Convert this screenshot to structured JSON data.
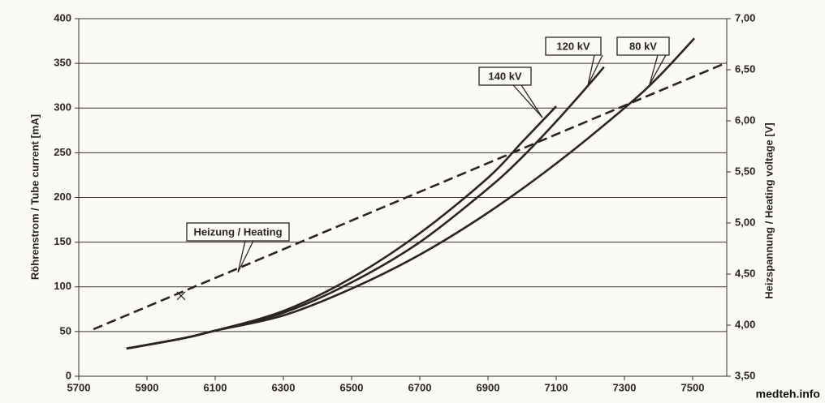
{
  "chart_data": {
    "type": "line",
    "y_label": "Röhrenstrom / Tube current  [mA]",
    "y2_label": "Heizspannung / Heating voltage [V]",
    "xlim": [
      5700,
      7600
    ],
    "xticks": [
      5700,
      5900,
      6100,
      6300,
      6500,
      6700,
      6900,
      7100,
      7300,
      7500
    ],
    "ylim": [
      0,
      400
    ],
    "yticks": [
      0,
      50,
      100,
      150,
      200,
      250,
      300,
      350,
      400
    ],
    "y2lim": [
      3.5,
      7.0
    ],
    "y2ticks": [
      {
        "value": 3.5,
        "label": "3,50"
      },
      {
        "value": 4.0,
        "label": "4,00"
      },
      {
        "value": 4.5,
        "label": "4,50"
      },
      {
        "value": 5.0,
        "label": "5,00"
      },
      {
        "value": 5.5,
        "label": "5,50"
      },
      {
        "value": 6.0,
        "label": "6,00"
      },
      {
        "value": 6.5,
        "label": "6,50"
      },
      {
        "value": 7.0,
        "label": "7,00"
      }
    ],
    "grid": true,
    "series": [
      {
        "name": "140 kV",
        "color": "#2a2520",
        "dashed": false,
        "x": [
          5840,
          6000,
          6100,
          6300,
          6500,
          6700,
          6900,
          7000,
          7100
        ],
        "values": [
          31,
          42,
          51,
          73,
          110,
          160,
          222,
          262,
          302
        ]
      },
      {
        "name": "120 kV",
        "color": "#2a2520",
        "dashed": false,
        "x": [
          5840,
          6000,
          6100,
          6300,
          6500,
          6700,
          6900,
          7000,
          7100,
          7200,
          7240
        ],
        "values": [
          31,
          42,
          51,
          71,
          105,
          150,
          210,
          245,
          285,
          328,
          346
        ]
      },
      {
        "name": "80 kV",
        "color": "#2a2520",
        "dashed": false,
        "x": [
          5840,
          6000,
          6100,
          6300,
          6500,
          6700,
          6900,
          7100,
          7300,
          7400,
          7505
        ],
        "values": [
          31,
          42,
          51,
          68,
          98,
          136,
          183,
          238,
          300,
          335,
          378
        ]
      },
      {
        "name": "Heizung / Heating",
        "color": "#2a2520",
        "dashed": true,
        "axis": "y2",
        "x": [
          5743,
          7600
        ],
        "values": [
          3.96,
          6.57
        ]
      }
    ],
    "marker": {
      "x": 6000,
      "y": 90
    },
    "watermark": "medteh.info"
  }
}
